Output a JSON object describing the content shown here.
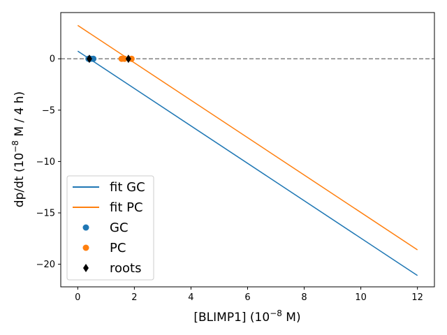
{
  "chart_data": {
    "type": "line",
    "xlabel": {
      "main": "[BLIMP1] (10",
      "exp": "−8",
      "tail": " M)"
    },
    "ylabel": {
      "main": "dp/dt (10",
      "exp": "−8",
      "tail": " M / 4 h)"
    },
    "xlim": [
      -0.6,
      12.6
    ],
    "ylim": [
      -22.2,
      4.5
    ],
    "xticks": [
      0,
      2,
      4,
      6,
      8,
      10,
      12
    ],
    "yticks": [
      0,
      -5,
      -10,
      -15,
      -20
    ],
    "xtick_labels": [
      "0",
      "2",
      "4",
      "6",
      "8",
      "10",
      "12"
    ],
    "ytick_labels": [
      "0",
      "−5",
      "−10",
      "−15",
      "−20"
    ],
    "zero_line": {
      "y": 0,
      "style": "dashed",
      "color": "#808080"
    },
    "series": [
      {
        "name": "fit GC",
        "kind": "line",
        "color": "#1f77b4",
        "x": [
          0,
          12
        ],
        "y": [
          0.75,
          -21.1
        ]
      },
      {
        "name": "fit PC",
        "kind": "line",
        "color": "#ff7f0e",
        "x": [
          0,
          12
        ],
        "y": [
          3.25,
          -18.6
        ]
      },
      {
        "name": "GC",
        "kind": "scatter",
        "marker": "circle",
        "color": "#1f77b4",
        "x": [
          0.38,
          0.45,
          0.55
        ],
        "y": [
          0,
          0,
          0
        ]
      },
      {
        "name": "PC",
        "kind": "scatter",
        "marker": "circle",
        "color": "#ff7f0e",
        "x": [
          1.55,
          1.65,
          1.9
        ],
        "y": [
          0,
          0,
          0
        ]
      },
      {
        "name": "roots",
        "kind": "scatter",
        "marker": "diamond",
        "color": "#000000",
        "x": [
          0.41,
          1.79
        ],
        "y": [
          0,
          0
        ]
      }
    ],
    "legend": {
      "position": "lower-left",
      "entries": [
        "fit GC",
        "fit PC",
        "GC",
        "PC",
        "roots"
      ]
    },
    "grid": false
  }
}
